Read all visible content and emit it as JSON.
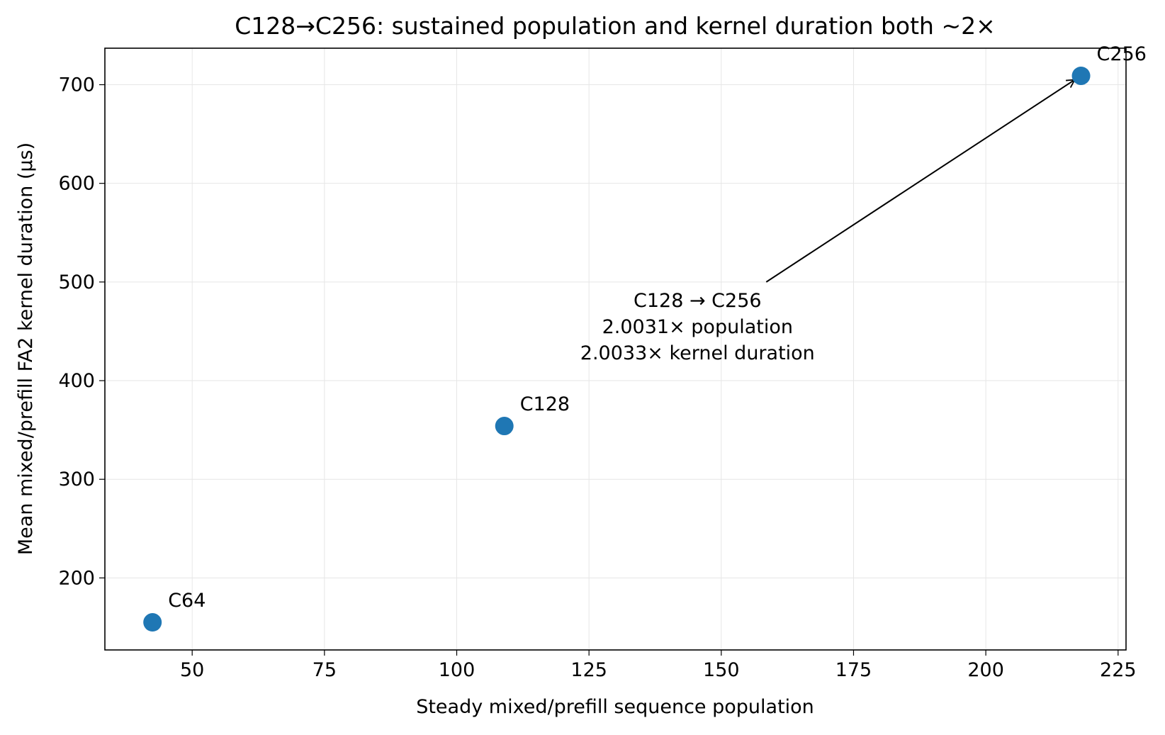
{
  "chart_data": {
    "type": "scatter",
    "title": "C128→C256: sustained population and kernel duration both ~2×",
    "xlabel": "Steady mixed/prefill sequence population",
    "ylabel": "Mean mixed/prefill FA2 kernel duration (µs)",
    "xlim": [
      33.5,
      226.5
    ],
    "ylim": [
      127,
      737
    ],
    "xticks": [
      50,
      75,
      100,
      125,
      150,
      175,
      200,
      225
    ],
    "yticks": [
      200,
      300,
      400,
      500,
      600,
      700
    ],
    "grid": true,
    "legend": "none",
    "point_color": "#1f77b4",
    "points": [
      {
        "label": "C64",
        "x": 42.5,
        "y": 155
      },
      {
        "label": "C128",
        "x": 109,
        "y": 354
      },
      {
        "label": "C256",
        "x": 218,
        "y": 709
      }
    ],
    "annotation": {
      "lines": [
        "C128 → C256",
        "2.0031× population",
        "2.0033× kernel duration"
      ],
      "arrow_from": [
        158.5,
        500
      ],
      "arrow_to": [
        216.8,
        705
      ]
    }
  }
}
